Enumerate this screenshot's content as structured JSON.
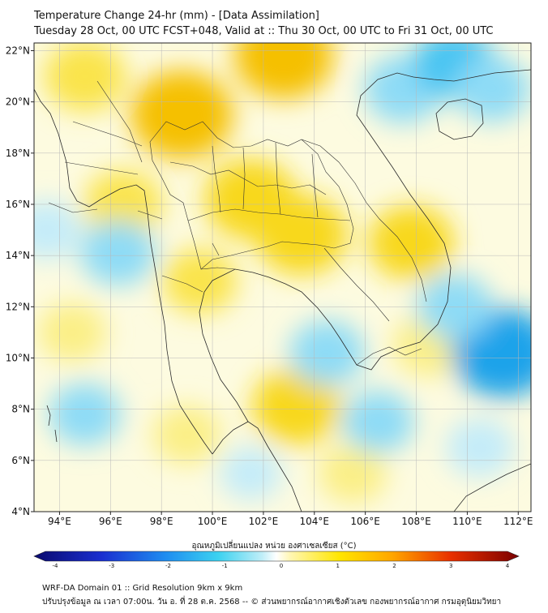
{
  "header": {
    "title_line1": "Temperature Change 24-hr (mm) - [Data Assimilation]",
    "title_line2": "Tuesday 28 Oct, 00 UTC FCST+048, Valid at :: Thu 30 Oct, 00 UTC to Fri 31 Oct, 00 UTC"
  },
  "map": {
    "lat_labels": [
      "22°N",
      "20°N",
      "18°N",
      "16°N",
      "14°N",
      "12°N",
      "10°N",
      "8°N",
      "6°N",
      "4°N"
    ],
    "lon_labels": [
      "94°E",
      "96°E",
      "98°E",
      "100°E",
      "102°E",
      "104°E",
      "106°E",
      "108°E",
      "110°E",
      "112°E"
    ],
    "lat_values": [
      22,
      20,
      18,
      16,
      14,
      12,
      10,
      8,
      6,
      4
    ],
    "lon_values": [
      94,
      96,
      98,
      100,
      102,
      104,
      106,
      108,
      110,
      112
    ],
    "lat_range": [
      4,
      22.3
    ],
    "lon_range": [
      93,
      112.5
    ],
    "field_blobs": [
      {
        "lon": 98.8,
        "lat": 19.5,
        "value": 1.6
      },
      {
        "lon": 102.8,
        "lat": 21.8,
        "value": 1.5
      },
      {
        "lon": 101.5,
        "lat": 16.2,
        "value": 1.3
      },
      {
        "lon": 103.5,
        "lat": 14.8,
        "value": 1.3
      },
      {
        "lon": 95.0,
        "lat": 21.0,
        "value": 1.0
      },
      {
        "lon": 96.5,
        "lat": 16.0,
        "value": 0.9
      },
      {
        "lon": 99.5,
        "lat": 13.0,
        "value": 0.8
      },
      {
        "lon": 103.3,
        "lat": 8.1,
        "value": 1.2
      },
      {
        "lon": 107.8,
        "lat": 14.5,
        "value": 1.1
      },
      {
        "lon": 108.5,
        "lat": 10.5,
        "value": 0.7
      },
      {
        "lon": 94.5,
        "lat": 11.0,
        "value": 0.6
      },
      {
        "lon": 99.0,
        "lat": 7.0,
        "value": 0.6
      },
      {
        "lon": 105.5,
        "lat": 5.5,
        "value": 0.6
      },
      {
        "lon": 107.5,
        "lat": 20.5,
        "value": -0.9
      },
      {
        "lon": 109.5,
        "lat": 21.5,
        "value": -1.0
      },
      {
        "lon": 111.0,
        "lat": 20.5,
        "value": -0.8
      },
      {
        "lon": 111.4,
        "lat": 10.2,
        "value": -1.6
      },
      {
        "lon": 109.5,
        "lat": 12.0,
        "value": -0.8
      },
      {
        "lon": 104.5,
        "lat": 10.2,
        "value": -0.8
      },
      {
        "lon": 106.5,
        "lat": 7.5,
        "value": -0.7
      },
      {
        "lon": 95.0,
        "lat": 7.8,
        "value": -0.7
      },
      {
        "lon": 96.3,
        "lat": 14.1,
        "value": -0.8
      },
      {
        "lon": 93.5,
        "lat": 15.0,
        "value": -0.6
      },
      {
        "lon": 101.5,
        "lat": 5.5,
        "value": -0.4
      },
      {
        "lon": 110.5,
        "lat": 6.5,
        "value": -0.6
      }
    ]
  },
  "colorbar": {
    "title": "อุณหภูมิเปลี่ยนแปลง หน่วย องศาเซลเซียส (°C)",
    "ticks": [
      "-4",
      "-3",
      "-2",
      "-1",
      "0",
      "1",
      "2",
      "3",
      "4"
    ],
    "tick_values": [
      -4,
      -3,
      -2,
      -1,
      0,
      1,
      2,
      3,
      4
    ],
    "range": [
      -4,
      4
    ]
  },
  "footer": {
    "line1": "WRF-DA Domain 01 :: Grid Resolution 9km x 9km",
    "line2": "ปรับปรุงข้อมูล ณ เวลา 07:00น. วัน อ. ที่ 28 ต.ค. 2568 -- © ส่วนพยากรณ์อากาศเชิงตัวเลข กองพยากรณ์อากาศ กรมอุตุนิยมวิทยา"
  }
}
